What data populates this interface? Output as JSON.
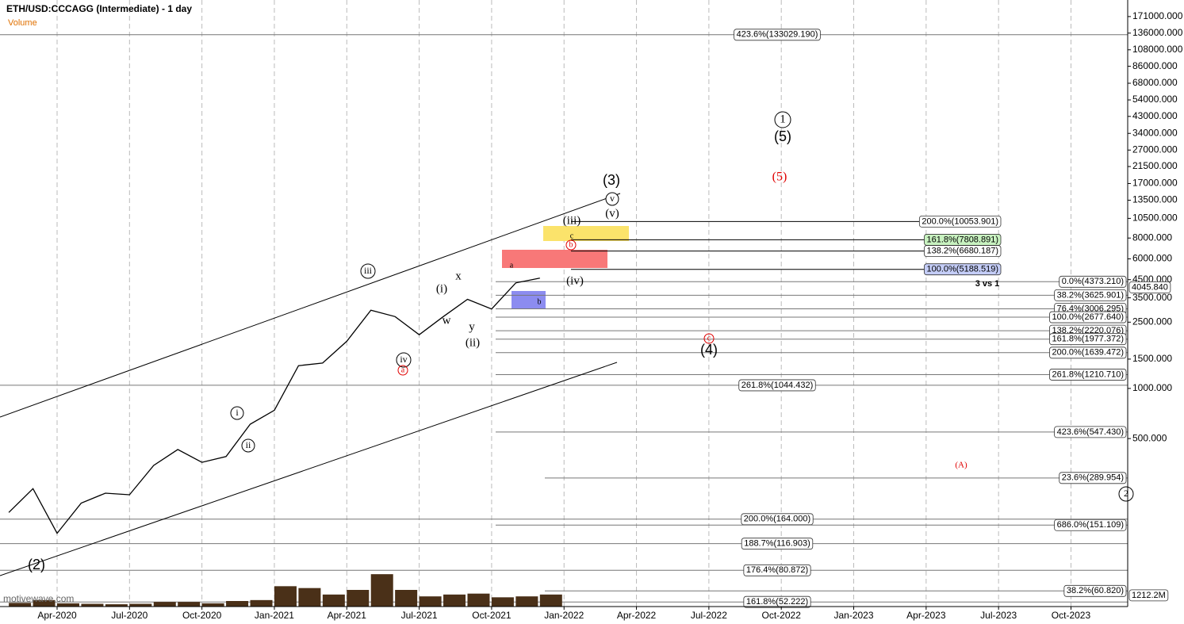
{
  "chart_data": {
    "type": "line",
    "title": "ETH/USD:CCCAGG (Intermediate) - 1 day",
    "watermark": "motivewave.com",
    "log_scale": true,
    "color": "#000000",
    "x": [
      "2020-02",
      "2020-03",
      "2020-04",
      "2020-05",
      "2020-06",
      "2020-07",
      "2020-08",
      "2020-09",
      "2020-10",
      "2020-11",
      "2020-12",
      "2021-01",
      "2021-02",
      "2021-03",
      "2021-04",
      "2021-05",
      "2021-06",
      "2021-07",
      "2021-08",
      "2021-09",
      "2021-10",
      "2021-11",
      "2021-12"
    ],
    "values": [
      180,
      250,
      135,
      205,
      235,
      230,
      345,
      430,
      360,
      390,
      610,
      740,
      1370,
      1420,
      1920,
      2950,
      2700,
      2100,
      2700,
      3430,
      3000,
      4300,
      4600
    ],
    "volume": {
      "name": "Volume",
      "axis": "y2",
      "color": "#4a3018",
      "values": [
        400,
        700,
        350,
        300,
        250,
        300,
        500,
        500,
        350,
        600,
        700,
        2200,
        2000,
        1300,
        1800,
        3500,
        1800,
        1100,
        1300,
        1400,
        1000,
        1100,
        1300
      ]
    },
    "ylim": [
      49,
      215000
    ],
    "yticks": [
      {
        "value": 171000,
        "label": "171000.000"
      },
      {
        "value": 136000,
        "label": "136000.000"
      },
      {
        "value": 108000,
        "label": "108000.000"
      },
      {
        "value": 86000,
        "label": "86000.000"
      },
      {
        "value": 68000,
        "label": "68000.000"
      },
      {
        "value": 54000,
        "label": "54000.000"
      },
      {
        "value": 43000,
        "label": "43000.000"
      },
      {
        "value": 34000,
        "label": "34000.000"
      },
      {
        "value": 27000,
        "label": "27000.000"
      },
      {
        "value": 21500,
        "label": "21500.000"
      },
      {
        "value": 17000,
        "label": "17000.000"
      },
      {
        "value": 13500,
        "label": "13500.000"
      },
      {
        "value": 10500,
        "label": "10500.000"
      },
      {
        "value": 8000,
        "label": "8000.000"
      },
      {
        "value": 6000,
        "label": "6000.000"
      },
      {
        "value": 4500,
        "label": "4500.000"
      },
      {
        "value": 3500,
        "label": "3500.000"
      },
      {
        "value": 2500,
        "label": "2500.000"
      },
      {
        "value": 1500,
        "label": "1500.000"
      },
      {
        "value": 1000,
        "label": "1000.000"
      },
      {
        "value": 500,
        "label": "500.000"
      }
    ],
    "y2lim": [
      0,
      6000
    ],
    "y2ticks": [
      {
        "value": 1212.2,
        "label": "1212.2M"
      }
    ],
    "last_price": {
      "value": 4045.84,
      "label": "4045.840"
    },
    "xticks": [
      {
        "value": "2020-04",
        "label": "Apr-2020"
      },
      {
        "value": "2020-07",
        "label": "Jul-2020"
      },
      {
        "value": "2020-10",
        "label": "Oct-2020"
      },
      {
        "value": "2021-01",
        "label": "Jan-2021"
      },
      {
        "value": "2021-04",
        "label": "Apr-2021"
      },
      {
        "value": "2021-07",
        "label": "Jul-2021"
      },
      {
        "value": "2021-10",
        "label": "Oct-2021"
      },
      {
        "value": "2022-01",
        "label": "Jan-2022"
      },
      {
        "value": "2022-04",
        "label": "Apr-2022"
      },
      {
        "value": "2022-07",
        "label": "Jul-2022"
      },
      {
        "value": "2022-10",
        "label": "Oct-2022"
      },
      {
        "value": "2023-01",
        "label": "Jan-2023"
      },
      {
        "value": "2023-04",
        "label": "Apr-2023"
      },
      {
        "value": "2023-07",
        "label": "Jul-2023"
      },
      {
        "value": "2023-10",
        "label": "Oct-2023"
      }
    ],
    "grid": true,
    "fib_left": [
      {
        "label": "423.6%(133029.190)",
        "value": 133029.19
      },
      {
        "label": "261.8%(1044.432)",
        "value": 1044.432
      },
      {
        "label": "200.0%(164.000)",
        "value": 164
      },
      {
        "label": "188.7%(116.903)",
        "value": 116.903
      },
      {
        "label": "176.4%(80.872)",
        "value": 80.872
      },
      {
        "label": "161.8%(52.222)",
        "value": 52.222
      }
    ],
    "fib_right": [
      {
        "label": "0.0%(4373.210)",
        "value": 4373.21
      },
      {
        "label": "38.2%(3625.901)",
        "value": 3625.901
      },
      {
        "label": "76.4%(3006.295)",
        "value": 3006.295
      },
      {
        "label": "100.0%(2677.640)",
        "value": 2677.64
      },
      {
        "label": "138.2%(2220.076)",
        "value": 2220.076
      },
      {
        "label": "161.8%(1977.372)",
        "value": 1977.372
      },
      {
        "label": "200.0%(1639.472)",
        "value": 1639.472
      },
      {
        "label": "261.8%(1210.710)",
        "value": 1210.71
      },
      {
        "label": "423.6%(547.430)",
        "value": 547.43
      },
      {
        "label": "686.0%(151.109)",
        "value": 151.109
      }
    ],
    "fib_lower": [
      {
        "label": "23.6%(289.954)",
        "value": 289.954
      },
      {
        "label": "38.2%(60.820)",
        "value": 60.82
      }
    ],
    "fib_upper": [
      {
        "label": "200.0%(10053.901)",
        "value": 10053.901
      },
      {
        "label": "161.8%(7808.891)",
        "value": 7808.891,
        "color": "#c8f2c0"
      },
      {
        "label": "138.2%(6680.187)",
        "value": 6680.187
      },
      {
        "label": "100.0%(5188.519)",
        "value": 5188.519,
        "color": "#c4cdf7"
      }
    ],
    "wave_labels": [
      "(3)",
      "v",
      "(v)",
      "(iii)",
      "c",
      "b",
      "a",
      "(iv)",
      "b",
      "iii",
      "(i)",
      "x",
      "w",
      "y",
      "(ii)",
      "iv",
      "a",
      "i",
      "ii",
      "(2)",
      "1",
      "(5)",
      "(5)",
      "c",
      "(4)",
      "3 vs 1",
      "(A)",
      "2"
    ]
  }
}
